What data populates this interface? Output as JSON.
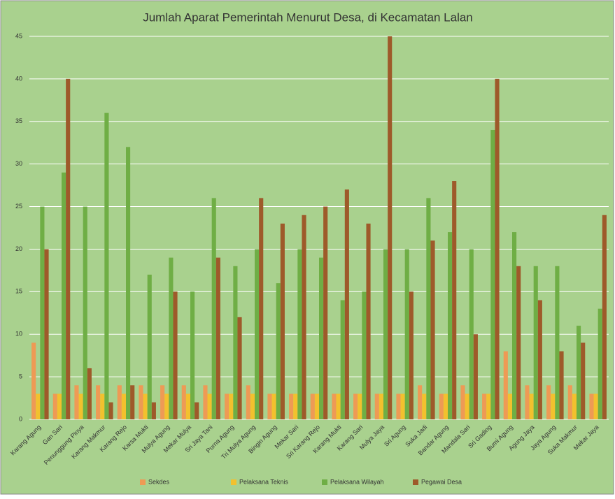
{
  "chart_data": {
    "type": "bar",
    "title": "Jumlah Aparat Pemerintah Menurut Desa, di Kecamatan Lalan",
    "categories": [
      "Karang Agung",
      "Gan Sari",
      "Penunggung Pinya",
      "Karang Makmur",
      "Karang Rejo",
      "Karsa Mukti",
      "Mulya Agung",
      "Mekar Mulya",
      "Sri Jaya Tani",
      "Purna Agung",
      "Tri Mulya Agung",
      "Bingin Agung",
      "Mekar Sari",
      "Sri Karang Rejo",
      "Karang Mukti",
      "Karang Sari",
      "Mulya Jaya",
      "Sri Agung",
      "Suka Jadi",
      "Bandar Agung",
      "Mandala Sari",
      "Sri Gading",
      "Bumi Agung",
      "Agung Jaya",
      "Jaya Agung",
      "Suka Makmur",
      "Mekar Jaya"
    ],
    "series": [
      {
        "name": "Sekdes",
        "color": "#ee9a55",
        "values": [
          9,
          3,
          4,
          4,
          4,
          4,
          4,
          4,
          4,
          3,
          4,
          3,
          3,
          3,
          3,
          3,
          3,
          3,
          4,
          3,
          4,
          3,
          8,
          4,
          4,
          4,
          3
        ]
      },
      {
        "name": "Pelaksana Teknis",
        "color": "#f2c12e",
        "values": [
          3,
          3,
          3,
          3,
          3,
          3,
          3,
          3,
          3,
          3,
          3,
          3,
          3,
          3,
          3,
          3,
          3,
          3,
          3,
          3,
          3,
          3,
          3,
          3,
          3,
          3,
          3
        ]
      },
      {
        "name": "Pelaksana Wilayah",
        "color": "#6fae45",
        "values": [
          25,
          29,
          25,
          36,
          32,
          17,
          19,
          15,
          26,
          18,
          20,
          16,
          20,
          19,
          14,
          15,
          20,
          20,
          26,
          22,
          20,
          34,
          22,
          18,
          18,
          11,
          13
        ]
      },
      {
        "name": "Pegawai Desa",
        "color": "#9e5a2a",
        "values": [
          20,
          40,
          6,
          2,
          4,
          2,
          15,
          2,
          19,
          12,
          26,
          23,
          24,
          25,
          27,
          23,
          45,
          15,
          21,
          28,
          10,
          40,
          18,
          14,
          8,
          9,
          24
        ]
      }
    ],
    "ylim": [
      0,
      45
    ],
    "yticks": [
      0,
      5,
      10,
      15,
      20,
      25,
      30,
      35,
      40,
      45
    ],
    "grid": true,
    "legend": "bottom"
  }
}
